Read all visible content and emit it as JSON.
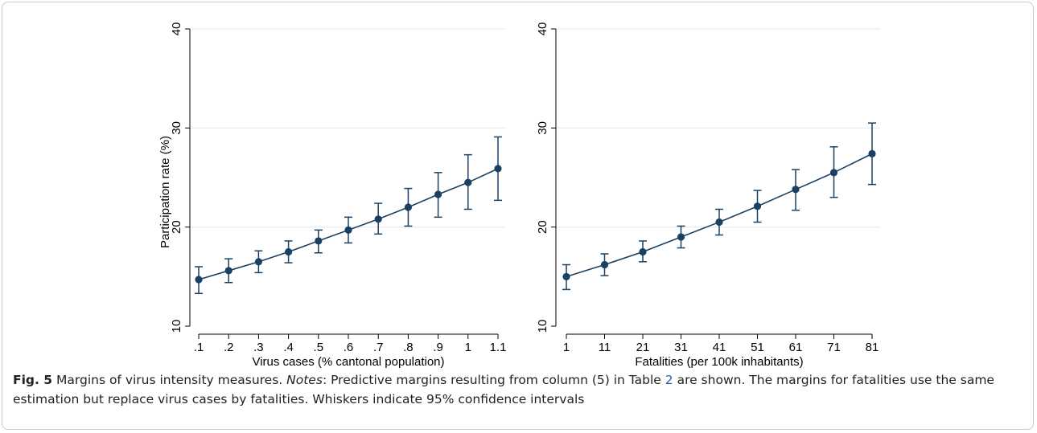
{
  "caption": {
    "fig_label": "Fig. 5",
    "title": " Margins of virus intensity measures. ",
    "notes_label": "Notes",
    "text_a": ": Predictive margins resulting from column (5) in Table ",
    "table_ref": "2",
    "text_b": " are shown. The margins for fatalities use the same estimation but replace virus cases by fatalities. Whiskers indicate 95% confidence intervals"
  },
  "chart_data": [
    {
      "type": "line",
      "title": "",
      "xlabel": "Virus cases (% cantonal population)",
      "ylabel": "Participation rate (%)",
      "ylim": [
        10,
        40
      ],
      "yticks": [
        10,
        20,
        30,
        40
      ],
      "grid": true,
      "x_tick_labels": [
        ".1",
        ".2",
        ".3",
        ".4",
        ".5",
        ".6",
        ".7",
        ".8",
        ".9",
        "1",
        "1.1"
      ],
      "x": [
        0.1,
        0.2,
        0.3,
        0.4,
        0.5,
        0.6,
        0.7,
        0.8,
        0.9,
        1.0,
        1.1
      ],
      "xlim": [
        0.1,
        1.1
      ],
      "series": [
        {
          "values": [
            14.7,
            15.6,
            16.5,
            17.5,
            18.6,
            19.7,
            20.8,
            22.0,
            23.3,
            24.5,
            25.9
          ],
          "ci_low": [
            13.3,
            14.4,
            15.4,
            16.4,
            17.4,
            18.4,
            19.3,
            20.1,
            21.0,
            21.8,
            22.7
          ],
          "ci_high": [
            16.0,
            16.8,
            17.6,
            18.6,
            19.7,
            21.0,
            22.4,
            23.9,
            25.5,
            27.3,
            29.1
          ]
        }
      ],
      "colors": {
        "series": "#1a4163",
        "grid": "#e9eef2",
        "axis": "#000000"
      }
    },
    {
      "type": "line",
      "title": "",
      "xlabel": "Fatalities (per 100k inhabitants)",
      "ylabel": "",
      "ylim": [
        10,
        40
      ],
      "yticks": [
        10,
        20,
        30,
        40
      ],
      "grid": true,
      "x_tick_labels": [
        "1",
        "11",
        "21",
        "31",
        "41",
        "51",
        "61",
        "71",
        "81"
      ],
      "x": [
        1,
        11,
        21,
        31,
        41,
        51,
        61,
        71,
        81
      ],
      "xlim": [
        1,
        81
      ],
      "series": [
        {
          "values": [
            15.0,
            16.2,
            17.5,
            19.0,
            20.5,
            22.1,
            23.8,
            25.5,
            27.4
          ],
          "ci_low": [
            13.7,
            15.1,
            16.5,
            17.9,
            19.2,
            20.5,
            21.7,
            23.0,
            24.3
          ],
          "ci_high": [
            16.2,
            17.3,
            18.6,
            20.1,
            21.8,
            23.7,
            25.8,
            28.1,
            30.5
          ]
        }
      ],
      "colors": {
        "series": "#1a4163",
        "grid": "#e9eef2",
        "axis": "#000000"
      }
    }
  ]
}
